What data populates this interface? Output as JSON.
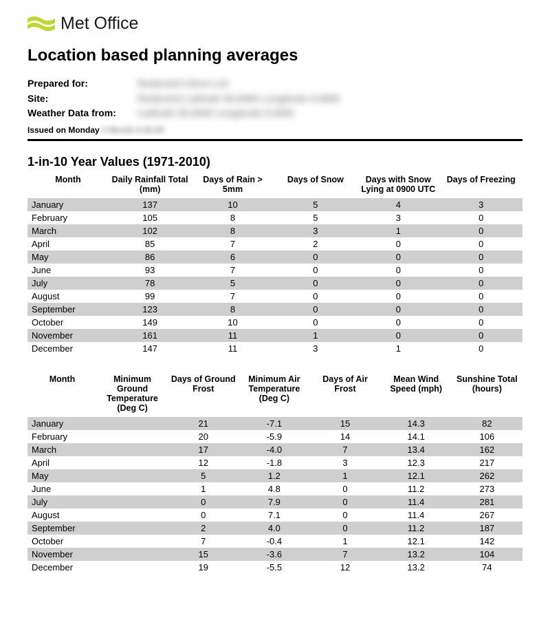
{
  "logo": {
    "text": "Met Office",
    "swoosh_color": "#bfd730",
    "text_color": "#1a1a1a"
  },
  "page_title": "Location based planning averages",
  "meta": {
    "prepared_for_label": "Prepared for:",
    "prepared_for_value": "Redacted Client Ltd",
    "site_label": "Site:",
    "site_value": "Redacted Latitude 00.0000 Longitude 0.0000",
    "weather_from_label": "Weather Data from:",
    "weather_from_value": "Latitude 00.0000 Longitude 0.0000",
    "issued_label": "Issued on Monday",
    "issued_date": "0 Month 0 00:00"
  },
  "section_title": "1-in-10 Year Values (1971-2010)",
  "colors": {
    "row_shade": "#cfcfcf",
    "background": "#ffffff",
    "rule": "#000000"
  },
  "table1": {
    "columns": [
      "Month",
      "Daily Rainfall Total (mm)",
      "Days of Rain > 5mm",
      "Days of Snow",
      "Days with Snow Lying at 0900 UTC",
      "Days of Freezing"
    ],
    "rows": [
      [
        "January",
        "137",
        "10",
        "5",
        "4",
        "3"
      ],
      [
        "February",
        "105",
        "8",
        "5",
        "3",
        "0"
      ],
      [
        "March",
        "102",
        "8",
        "3",
        "1",
        "0"
      ],
      [
        "April",
        "85",
        "7",
        "2",
        "0",
        "0"
      ],
      [
        "May",
        "86",
        "6",
        "0",
        "0",
        "0"
      ],
      [
        "June",
        "93",
        "7",
        "0",
        "0",
        "0"
      ],
      [
        "July",
        "78",
        "5",
        "0",
        "0",
        "0"
      ],
      [
        "August",
        "99",
        "7",
        "0",
        "0",
        "0"
      ],
      [
        "September",
        "123",
        "8",
        "0",
        "0",
        "0"
      ],
      [
        "October",
        "149",
        "10",
        "0",
        "0",
        "0"
      ],
      [
        "November",
        "161",
        "11",
        "1",
        "0",
        "0"
      ],
      [
        "December",
        "147",
        "11",
        "3",
        "1",
        "0"
      ]
    ]
  },
  "table2": {
    "columns": [
      "Month",
      "Minimum Ground Temperature (Deg C)",
      "Days of Ground Frost",
      "Minimum Air Temperature (Deg C)",
      "Days of Air Frost",
      "Mean Wind Speed (mph)",
      "Sunshine Total (hours)"
    ],
    "rows": [
      [
        "January",
        "",
        "21",
        "-7.1",
        "15",
        "14.3",
        "82"
      ],
      [
        "February",
        "",
        "20",
        "-5.9",
        "14",
        "14.1",
        "106"
      ],
      [
        "March",
        "",
        "17",
        "-4.0",
        "7",
        "13.4",
        "162"
      ],
      [
        "April",
        "",
        "12",
        "-1.8",
        "3",
        "12.3",
        "217"
      ],
      [
        "May",
        "",
        "5",
        "1.2",
        "1",
        "12.1",
        "262"
      ],
      [
        "June",
        "",
        "1",
        "4.8",
        "0",
        "11.2",
        "273"
      ],
      [
        "July",
        "",
        "0",
        "7.9",
        "0",
        "11.4",
        "281"
      ],
      [
        "August",
        "",
        "0",
        "7.1",
        "0",
        "11.4",
        "267"
      ],
      [
        "September",
        "",
        "2",
        "4.0",
        "0",
        "11.2",
        "187"
      ],
      [
        "October",
        "",
        "7",
        "-0.4",
        "1",
        "12.1",
        "142"
      ],
      [
        "November",
        "",
        "15",
        "-3.6",
        "7",
        "13.2",
        "104"
      ],
      [
        "December",
        "",
        "19",
        "-5.5",
        "12",
        "13.2",
        "74"
      ]
    ]
  }
}
